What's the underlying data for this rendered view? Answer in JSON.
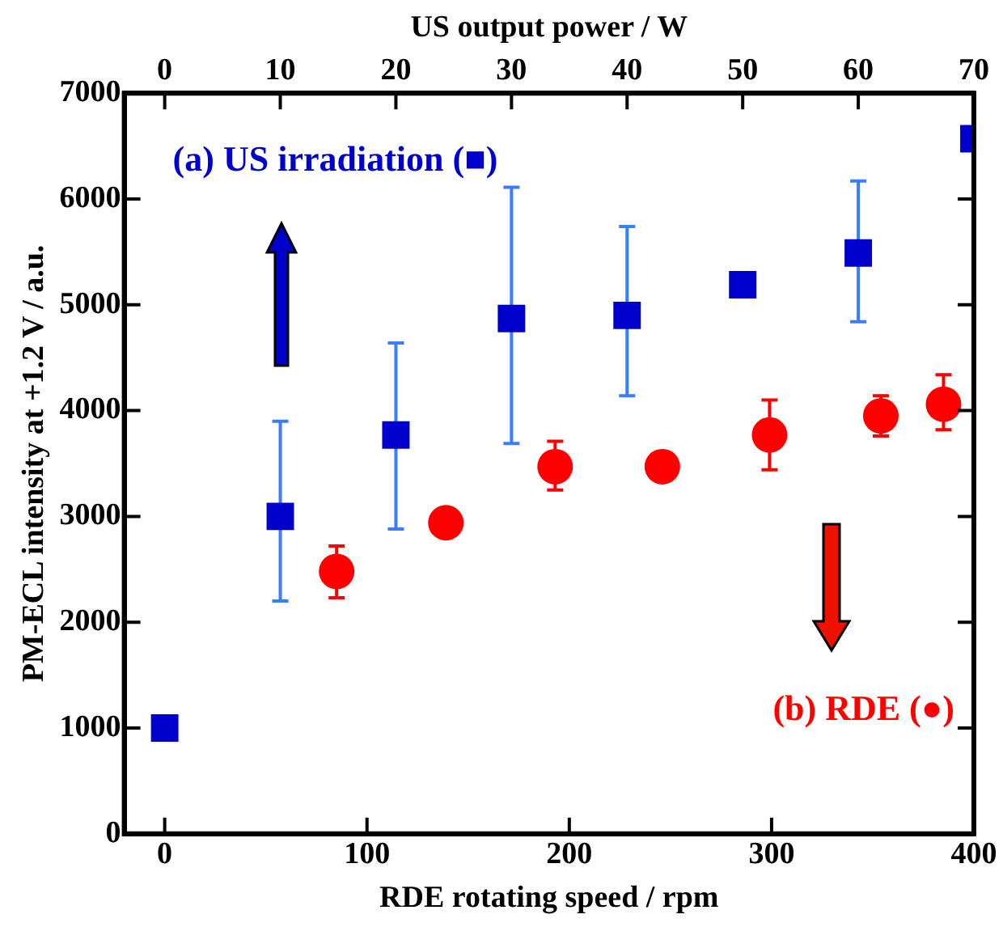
{
  "chart_data": {
    "type": "scatter",
    "xlabel": "RDE rotating speed / rpm",
    "x2label": "US output power / W",
    "ylabel": "PM-ECL intensity at +1.2 V / a.u.",
    "xlim": [
      -20,
      400
    ],
    "xticks": [
      0,
      100,
      200,
      300,
      400
    ],
    "x2lim": [
      -3.5,
      70
    ],
    "x2ticks": [
      0,
      10,
      20,
      30,
      40,
      50,
      60,
      70
    ],
    "ylim": [
      0,
      7000
    ],
    "yticks": [
      0,
      1000,
      2000,
      3000,
      4000,
      5000,
      6000,
      7000
    ],
    "grid": false,
    "legend": false,
    "series": [
      {
        "name": "(a) US irradiation (■)",
        "color": "#0000cc",
        "marker": "square",
        "axis": "x2",
        "x": [
          0,
          10,
          20,
          30,
          40,
          50,
          60,
          70
        ],
        "values": [
          1000,
          3000,
          3770,
          4870,
          4900,
          5190,
          5490,
          6570
        ],
        "errors": [
          null,
          [
            2200,
            3900
          ],
          [
            2880,
            4640
          ],
          [
            3690,
            6110
          ],
          [
            4140,
            5740
          ],
          null,
          [
            4840,
            6170
          ],
          null
        ]
      },
      {
        "name": "(b) RDE (●)",
        "color": "#ff0000",
        "marker": "circle",
        "x": [
          85,
          139,
          193,
          246,
          299,
          354,
          385
        ],
        "values": [
          2480,
          2940,
          3470,
          3470,
          3770,
          3950,
          4060
        ],
        "errors": [
          [
            2230,
            2720
          ],
          null,
          [
            3250,
            3710
          ],
          null,
          [
            3440,
            4100
          ],
          [
            3760,
            4140
          ],
          [
            3820,
            4340
          ]
        ]
      }
    ]
  }
}
